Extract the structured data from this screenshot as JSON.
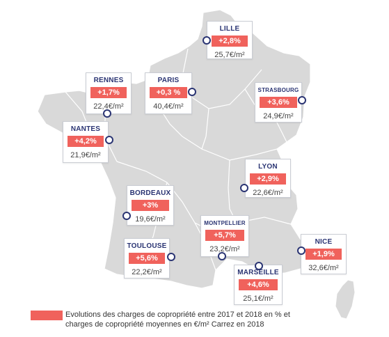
{
  "legend": {
    "color": "#f0625c",
    "line1": "Evolutions des charges de copropriété entre 2017 et 2018 en % et",
    "line2": "charges de copropriété moyennes en €/m² Carrez en 2018"
  },
  "colors": {
    "land": "#d9d9d9",
    "border": "#ffffff",
    "accent": "#f0625c",
    "city": "#2a3473"
  },
  "cities": {
    "lille": {
      "name": "LILLE",
      "change": "+2,8%",
      "price": "25,7€/m²"
    },
    "rennes": {
      "name": "RENNES",
      "change": "+1,7%",
      "price": "22,4€/m²"
    },
    "paris": {
      "name": "PARIS",
      "change": "+0,3 %",
      "price": "40,4€/m²"
    },
    "strasbourg": {
      "name": "STRASBOURG",
      "change": "+3,6%",
      "price": "24,9€/m²"
    },
    "nantes": {
      "name": "NANTES",
      "change": "+4,2%",
      "price": "21,9€/m²"
    },
    "lyon": {
      "name": "LYON",
      "change": "+2,9%",
      "price": "22,6€/m²"
    },
    "bordeaux": {
      "name": "BORDEAUX",
      "change": "+3%",
      "price": "19,6€/m²"
    },
    "montpellier": {
      "name": "MONTPELLIER",
      "change": "+5,7%",
      "price": "23,2€/m²"
    },
    "toulouse": {
      "name": "TOULOUSE",
      "change": "+5,6%",
      "price": "22,2€/m²"
    },
    "nice": {
      "name": "NICE",
      "change": "+1,9%",
      "price": "32,6€/m²"
    },
    "marseille": {
      "name": "MARSEILLE",
      "change": "+4,6%",
      "price": "25,1€/m²"
    }
  }
}
